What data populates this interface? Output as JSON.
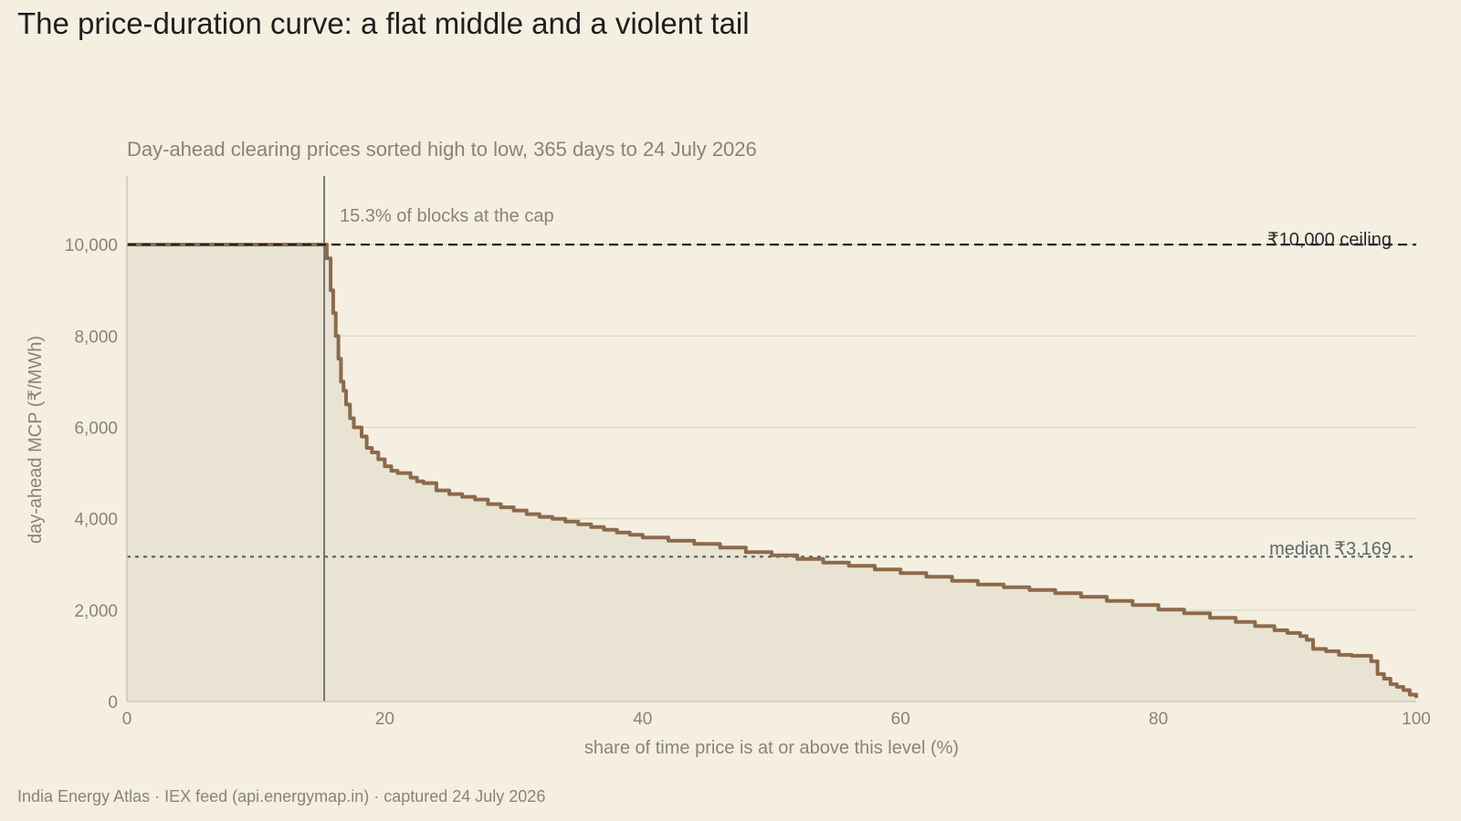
{
  "title": "The price-duration curve: a flat middle and a violent tail",
  "footer": "India Energy Atlas · IEX feed (api.energymap.in) · captured 24 July 2026",
  "colors": {
    "background": "#f5efe2",
    "curve": "#8c6a4a",
    "fill": "#e9e3d3",
    "gridline": "#ddd5c2",
    "ceiling": "#222222",
    "median": "#5b6a6c",
    "marker": "#6f6a62"
  },
  "chart_data": {
    "type": "area",
    "subtitle": "Day-ahead clearing prices sorted high to low, 365 days to 24 July 2026",
    "xlabel": "share of time price is at or above this level (%)",
    "ylabel": "day-ahead MCP (₹/MWh)",
    "xlim": [
      0,
      100
    ],
    "ylim": [
      0,
      11500
    ],
    "x_ticks": [
      0,
      20,
      40,
      60,
      80,
      100
    ],
    "x_tick_labels": [
      "0",
      "20",
      "40",
      "60",
      "80",
      "100"
    ],
    "y_ticks": [
      0,
      2000,
      4000,
      6000,
      8000,
      10000
    ],
    "y_tick_labels": [
      "0",
      "2,000",
      "4,000",
      "6,000",
      "8,000",
      "10,000"
    ],
    "grid": "horizontal",
    "series": [
      {
        "x": [
          0,
          15.3,
          15.5,
          15.8,
          16.0,
          16.2,
          16.4,
          16.6,
          16.8,
          17.0,
          17.3,
          17.6,
          17.9,
          18.2,
          18.6,
          19.0,
          19.5,
          20.0,
          20.5,
          21.0,
          21.5,
          22.0,
          22.5,
          23.0,
          24.0,
          25.0,
          26.0,
          27.0,
          28.0,
          29.0,
          30.0,
          31.0,
          32.0,
          33.0,
          34.0,
          35.0,
          36.0,
          37.0,
          38.0,
          39.0,
          40.0,
          42.0,
          44.0,
          46.0,
          48.0,
          50.0,
          52.0,
          54.0,
          56.0,
          58.0,
          60.0,
          62.0,
          64.0,
          66.0,
          68.0,
          70.0,
          72.0,
          74.0,
          76.0,
          78.0,
          80.0,
          82.0,
          84.0,
          86.0,
          87.5,
          89.0,
          90.0,
          91.0,
          91.5,
          92.0,
          93.0,
          94.0,
          95.0,
          96.0,
          96.5,
          97.0,
          97.5,
          98.0,
          98.5,
          99.0,
          99.5,
          100.0
        ],
        "y": [
          10000,
          10000,
          9700,
          9000,
          8500,
          8000,
          7500,
          7000,
          6800,
          6500,
          6200,
          6000,
          6000,
          5800,
          5550,
          5450,
          5300,
          5150,
          5050,
          5000,
          5000,
          4900,
          4820,
          4780,
          4620,
          4540,
          4480,
          4420,
          4320,
          4250,
          4180,
          4100,
          4040,
          4000,
          3940,
          3880,
          3820,
          3760,
          3700,
          3650,
          3590,
          3520,
          3450,
          3370,
          3270,
          3200,
          3120,
          3040,
          2970,
          2890,
          2810,
          2730,
          2640,
          2560,
          2500,
          2440,
          2370,
          2290,
          2200,
          2110,
          2010,
          1930,
          1830,
          1740,
          1650,
          1560,
          1500,
          1430,
          1350,
          1150,
          1100,
          1020,
          1000,
          1000,
          880,
          600,
          500,
          380,
          320,
          250,
          150,
          80
        ]
      }
    ],
    "annotations": {
      "cap_marker_x": 15.3,
      "cap_label": "15.3% of blocks at the cap",
      "ceiling_value": 10000,
      "ceiling_label": "₹10,000 ceiling",
      "median_value": 3169,
      "median_label": "median ₹3,169"
    }
  }
}
